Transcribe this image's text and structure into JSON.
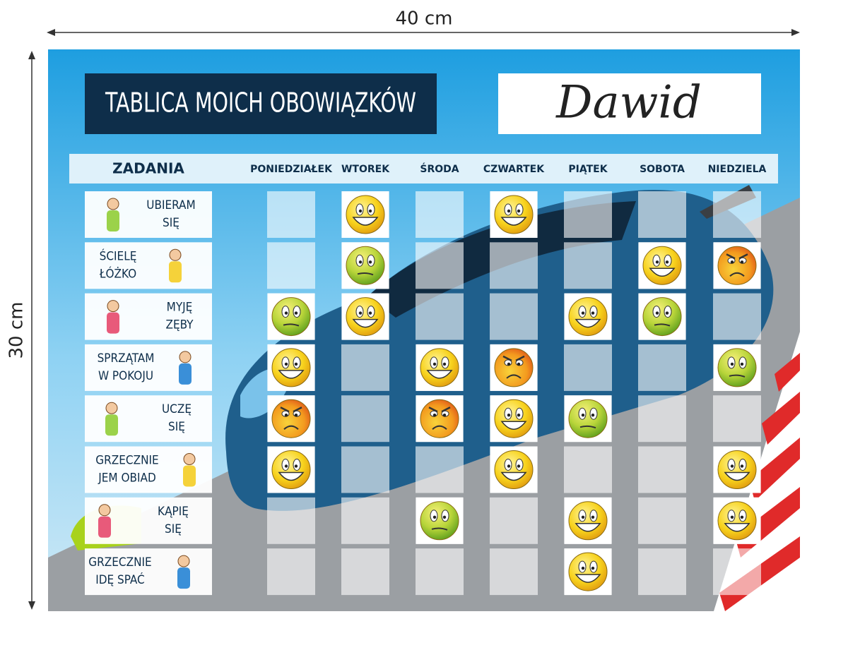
{
  "dimensions": {
    "width": "40 cm",
    "height": "30 cm"
  },
  "title": "TABLICA MOICH OBOWIĄZKÓW",
  "name": "Dawid",
  "tasks_header": "ZADANIA",
  "days": [
    "PONIEDZIAŁEK",
    "WTOREK",
    "ŚRODA",
    "CZWARTEK",
    "PIĄTEK",
    "SOBOTA",
    "NIEDZIELA"
  ],
  "tasks": [
    [
      "UBIERAM",
      "SIĘ"
    ],
    [
      "ŚCIELĘ",
      "ŁÓŻKO"
    ],
    [
      "MYJĘ",
      "ZĘBY"
    ],
    [
      "SPRZĄTAM",
      "W POKOJU"
    ],
    [
      "UCZĘ",
      "SIĘ"
    ],
    [
      "GRZECZNIE",
      "JEM OBIAD"
    ],
    [
      "KĄPIĘ",
      "SIĘ"
    ],
    [
      "GRZECZNIE",
      "IDĘ SPAĆ"
    ]
  ]
}
